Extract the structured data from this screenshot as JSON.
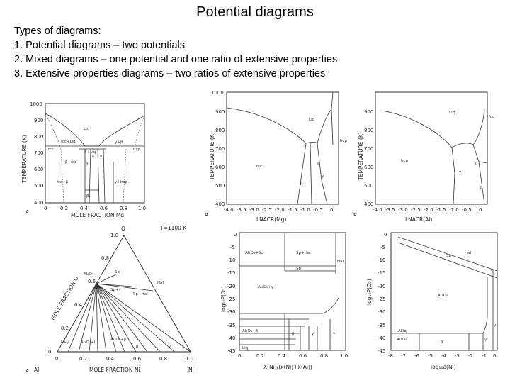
{
  "slide": {
    "title": "Potential diagrams",
    "intro": [
      "Types of diagrams:",
      "1. Potential diagrams – two potentials",
      "2. Mixed diagrams – one potential and one ratio of extensive properties",
      "3. Extensive properties diagrams – two ratios of extensive properties"
    ]
  },
  "figures": {
    "fig1": {
      "ylabel": "TEMPERATURE (K)",
      "xlabel": "MOLE FRACTION Mg",
      "xticks": [
        "0",
        "0.2",
        "0.4",
        "0.6",
        "0.8",
        "1.0"
      ],
      "yticks": [
        "1000",
        "900",
        "800",
        "700",
        "600",
        "500",
        "400"
      ],
      "labels": [
        "Liq",
        "fcc",
        "fcc+Liq",
        "β+Liq",
        "β+fcc",
        "γ+β",
        "hcp",
        "γ",
        "β",
        "ε",
        "fcc+β",
        "γ+hcp",
        "β₁"
      ]
    },
    "fig2": {
      "ylabel": "TEMPERATURE (K)",
      "xlabel": "LNACR(Mg)",
      "xticks": [
        "-4.0",
        "-3.5",
        "-3.0",
        "-2.5",
        "-2.0",
        "-1.5",
        "-1.0",
        "-0.5",
        "0"
      ],
      "yticks": [
        "1000",
        "900",
        "800",
        "700",
        "600",
        "500",
        "400"
      ],
      "labels": [
        "Liq",
        "fcc",
        "β",
        "γ",
        "hcp",
        "ε"
      ]
    },
    "fig3": {
      "ylabel": "TEMPERATURE (K)",
      "xlabel": "LNACR(Al)",
      "xticks": [
        "-4.0",
        "-3.5",
        "-3.0",
        "-2.5",
        "-2.0",
        "-1.5",
        "-1.0",
        "-0.5",
        "0"
      ],
      "yticks": [
        "1000",
        "900",
        "800",
        "700",
        "600",
        "500",
        "400"
      ],
      "labels": [
        "Liq",
        "hcp",
        "γ",
        "β",
        "ε",
        "fcc"
      ]
    },
    "fig4": {
      "temperature": "T=1100 K",
      "corner_top": "O",
      "corner_left": "Al",
      "corner_right": "Ni",
      "xlabel": "MOLE FRACTION Ni",
      "ylabel": "MOLE FRACTION O",
      "ticks": [
        "0",
        "0.2",
        "0.4",
        "0.6",
        "0.8",
        "1.0"
      ],
      "labels": [
        "Al₂O₃",
        "Sp",
        "Hal",
        "Sp+Hal",
        "Sp+γ",
        "Al₂O₃+β",
        "L+γ",
        "Al₂O₃+L",
        "β",
        "γ"
      ]
    },
    "fig5": {
      "ylabel": "log₁₀P(O₂)",
      "xlabel": "X(Ni)/(x(Ni)+x(Al))",
      "xticks": [
        "0",
        "0.2",
        "0.4",
        "0.6",
        "0.8",
        "1.0"
      ],
      "yticks": [
        "0",
        "-5",
        "-10",
        "-15",
        "-20",
        "-25",
        "-30",
        "-35",
        "-40",
        "-45"
      ],
      "labels": [
        "Al₂O₃+Sp",
        "Sp+Hal",
        "Hal",
        "Al₂O₃+γ",
        "Al₂O₃+β",
        "Liq",
        "β",
        "γ",
        "γ'",
        "Sp"
      ]
    },
    "fig6": {
      "ylabel": "log₁₀P(O₂)",
      "xlabel": "log₁₀a(Ni)",
      "xticks": [
        "-8",
        "-7",
        "-6",
        "-5",
        "-4",
        "-3",
        "-2",
        "-1",
        "0"
      ],
      "yticks": [
        "0",
        "-5",
        "-10",
        "-15",
        "-20",
        "-25",
        "-30",
        "-35",
        "-40",
        "-45"
      ],
      "labels": [
        "Hal",
        "Sp",
        "Al₂O₃",
        "Al₂O₃",
        "Alliq",
        "β",
        "γ'",
        "γ"
      ]
    }
  }
}
